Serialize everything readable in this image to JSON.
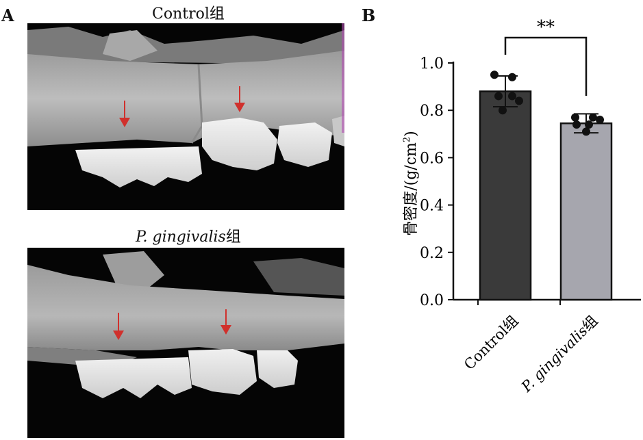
{
  "panel_a": {
    "letter": "A",
    "top_image": {
      "title_plain": "Control组"
    },
    "bottom_image": {
      "title_italic": "P. gingivalis",
      "title_suffix": "组"
    },
    "arrow_color": "#d0302c"
  },
  "panel_b": {
    "letter": "B"
  },
  "chart_data": {
    "type": "bar",
    "categories": [
      "Control组",
      "P. gingivalis组"
    ],
    "values": [
      0.88,
      0.745
    ],
    "errors": [
      0.065,
      0.04
    ],
    "points": [
      [
        0.95,
        0.94,
        0.86,
        0.86,
        0.84,
        0.8
      ],
      [
        0.77,
        0.77,
        0.76,
        0.74,
        0.74,
        0.71
      ]
    ],
    "bar_colors": [
      "#3a3a3a",
      "#a6a6ae"
    ],
    "ylabel_main": "骨密度/(g/cm",
    "ylabel_sup": "2",
    "ylabel_close": ")",
    "ylim": [
      0,
      1.0
    ],
    "yticks": [
      "0.0",
      "0.2",
      "0.4",
      "0.6",
      "0.8",
      "1.0"
    ],
    "significance": "**",
    "xtick_labels": {
      "control": "Control组",
      "pg_italic": "P. gingivalis",
      "pg_suffix": "组"
    }
  }
}
